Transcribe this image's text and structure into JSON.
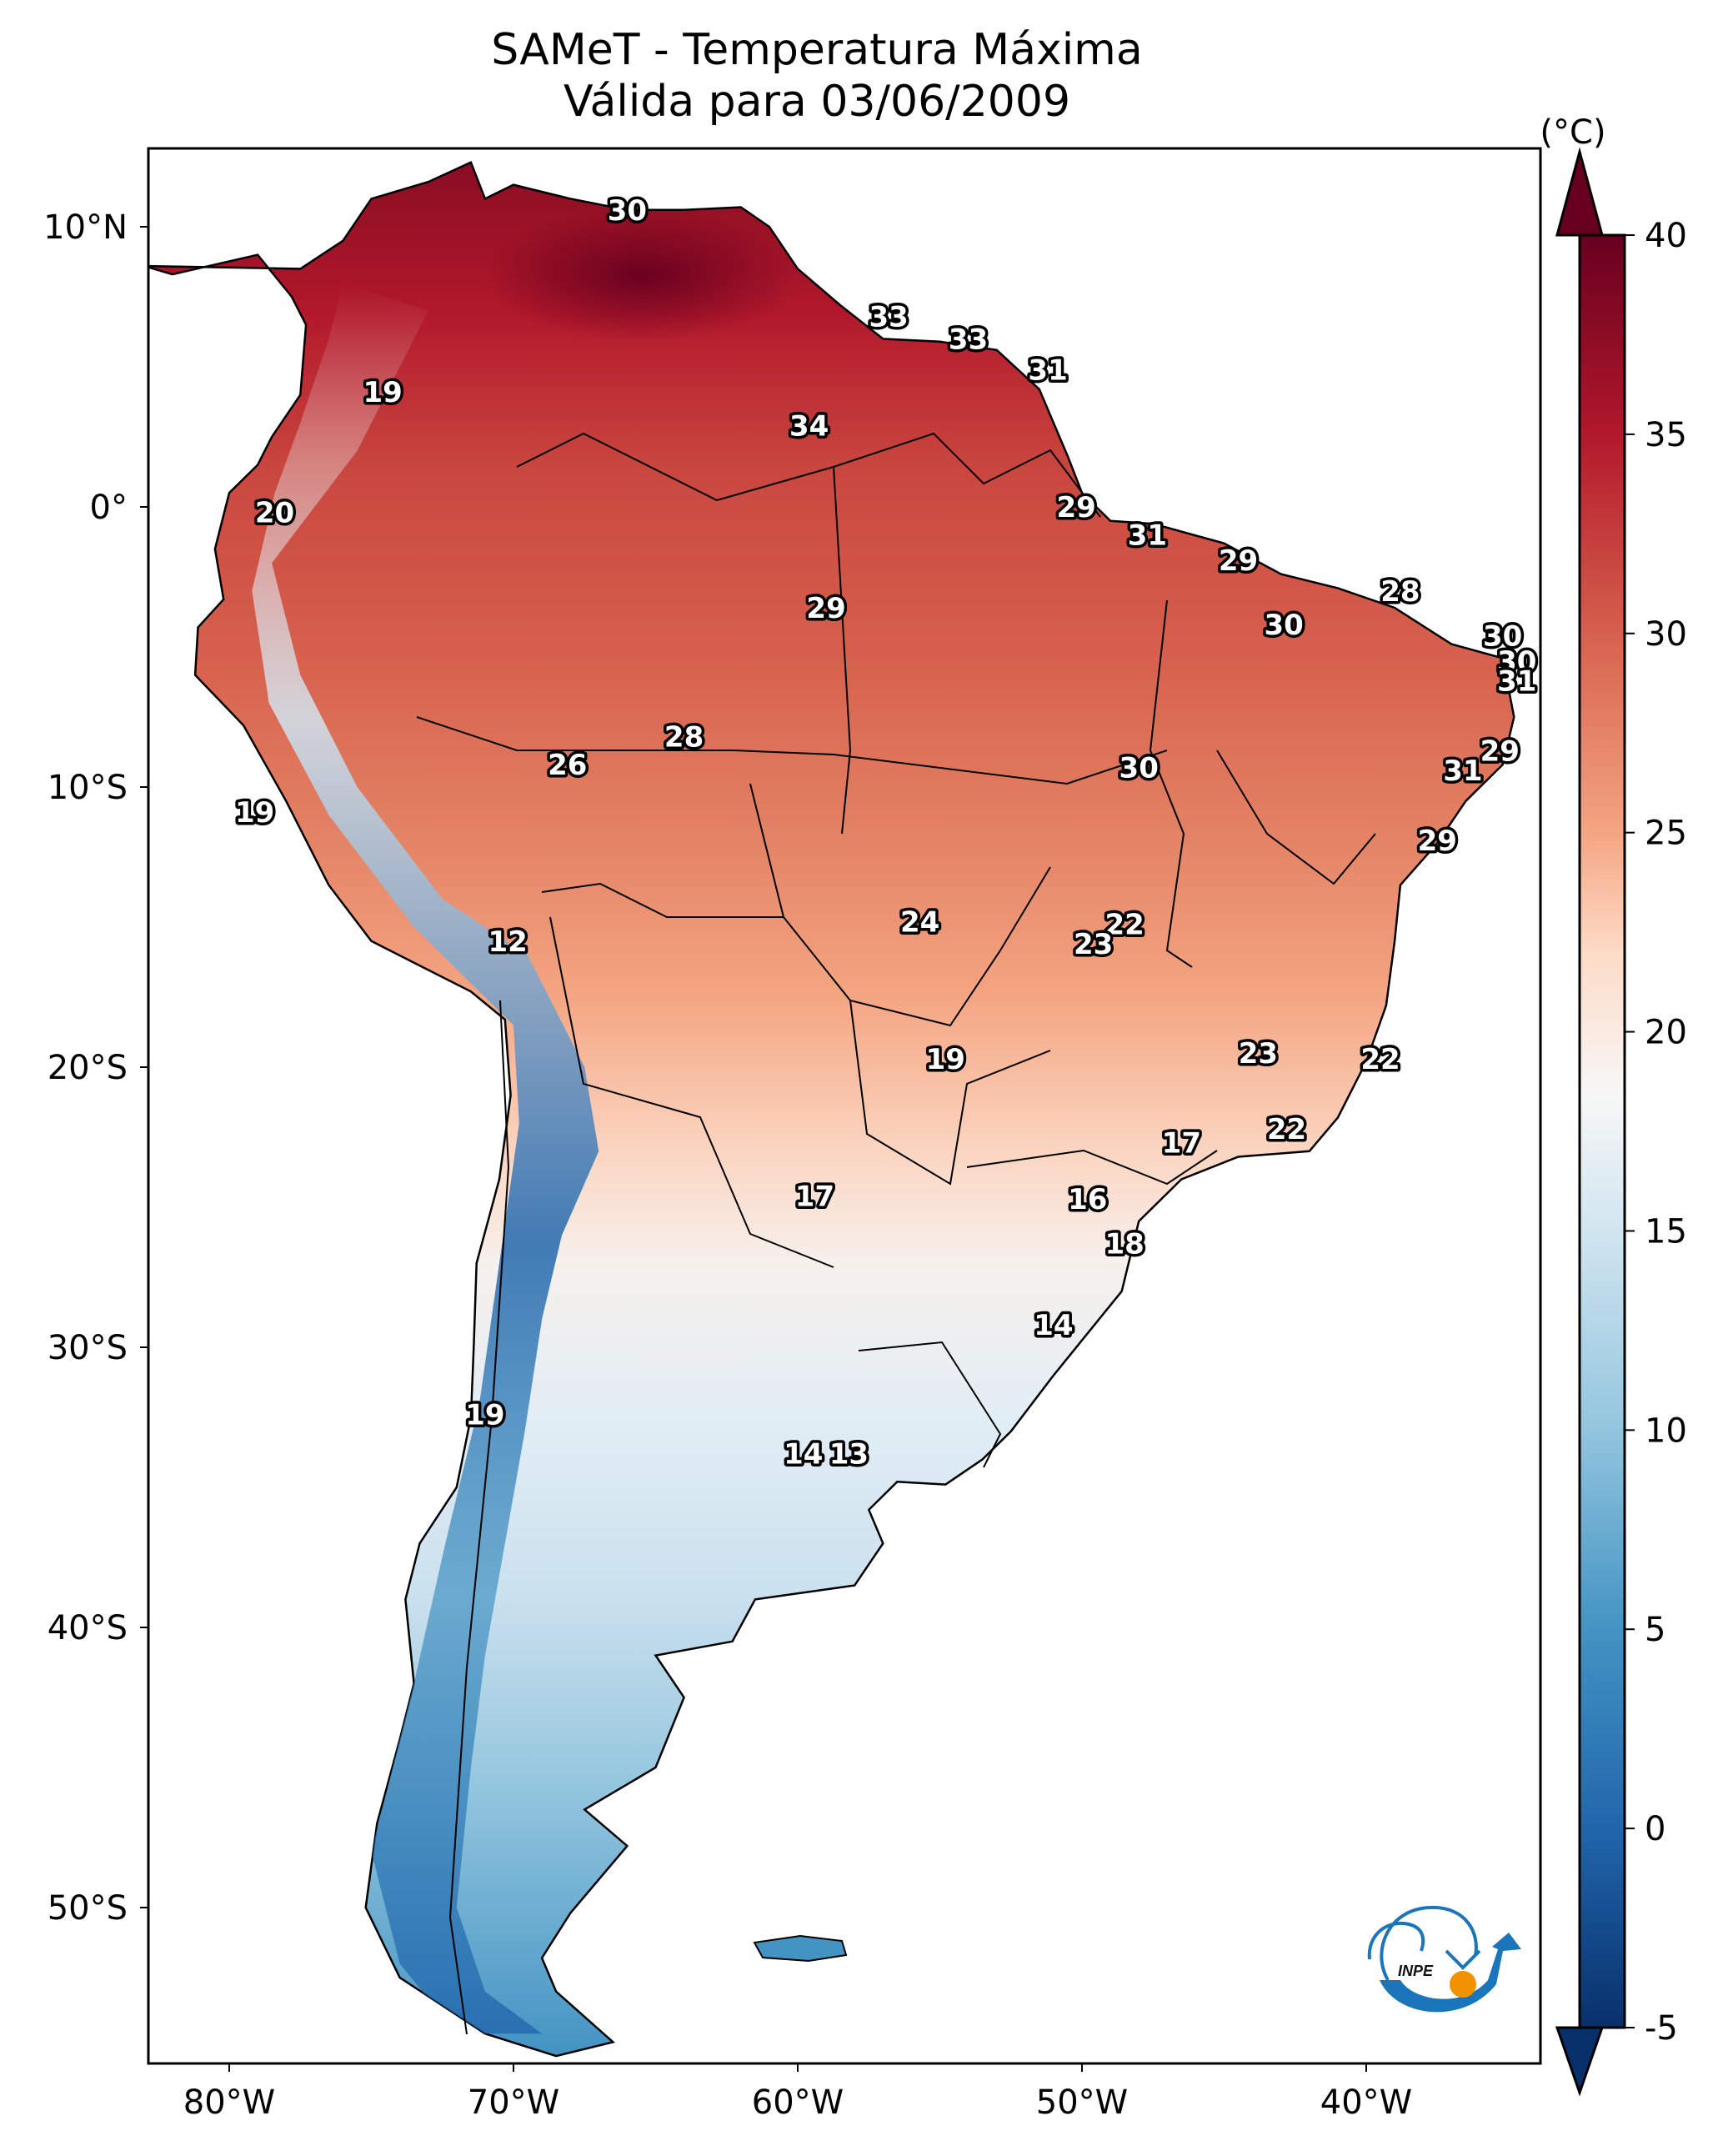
{
  "chart_data": {
    "type": "heatmap",
    "subtype": "map",
    "title": "SAMeT - Temperatura Máxima",
    "subtitle": "Válida para 03/06/2009",
    "region": "South America",
    "x_ticks": [
      {
        "value": -80,
        "label": "80°W"
      },
      {
        "value": -70,
        "label": "70°W"
      },
      {
        "value": -60,
        "label": "60°W"
      },
      {
        "value": -50,
        "label": "50°W"
      },
      {
        "value": -40,
        "label": "40°W"
      }
    ],
    "y_ticks": [
      {
        "value": 10,
        "label": "10°N"
      },
      {
        "value": 0,
        "label": "0°"
      },
      {
        "value": -10,
        "label": "10°S"
      },
      {
        "value": -20,
        "label": "20°S"
      },
      {
        "value": -30,
        "label": "30°S"
      },
      {
        "value": -40,
        "label": "40°S"
      },
      {
        "value": -50,
        "label": "50°S"
      }
    ],
    "xlim": [
      -83,
      -33
    ],
    "ylim": [
      -56,
      13
    ],
    "colorbar": {
      "unit_label": "(°C)",
      "range": [
        -5,
        40
      ],
      "extend": "both",
      "colormap": "RdBu_r",
      "ticks": [
        -5,
        0,
        5,
        10,
        15,
        20,
        25,
        30,
        35,
        40
      ],
      "tick_labels": [
        "-5",
        "0",
        "5",
        "10",
        "15",
        "20",
        "25",
        "30",
        "35",
        "40"
      ]
    },
    "labels": [
      {
        "value": 30,
        "lon": -66.0,
        "lat": 10.6
      },
      {
        "value": 33,
        "lon": -56.8,
        "lat": 6.8
      },
      {
        "value": 33,
        "lon": -54.0,
        "lat": 6.0
      },
      {
        "value": 31,
        "lon": -51.2,
        "lat": 4.9
      },
      {
        "value": 34,
        "lon": -59.6,
        "lat": 2.9
      },
      {
        "value": 19,
        "lon": -74.6,
        "lat": 4.1
      },
      {
        "value": 20,
        "lon": -78.4,
        "lat": -0.2
      },
      {
        "value": 29,
        "lon": -59.0,
        "lat": -3.6
      },
      {
        "value": 29,
        "lon": -50.2,
        "lat": 0.0
      },
      {
        "value": 31,
        "lon": -47.7,
        "lat": -1.0
      },
      {
        "value": 29,
        "lon": -44.5,
        "lat": -1.9
      },
      {
        "value": 28,
        "lon": -38.8,
        "lat": -3.0
      },
      {
        "value": 30,
        "lon": -42.9,
        "lat": -4.2
      },
      {
        "value": 30,
        "lon": -35.2,
        "lat": -4.6
      },
      {
        "value": 30,
        "lon": -34.7,
        "lat": -5.5
      },
      {
        "value": 31,
        "lon": -34.7,
        "lat": -6.2
      },
      {
        "value": 28,
        "lon": -64.0,
        "lat": -8.2
      },
      {
        "value": 26,
        "lon": -68.1,
        "lat": -9.2
      },
      {
        "value": 30,
        "lon": -48.0,
        "lat": -9.3
      },
      {
        "value": 29,
        "lon": -35.3,
        "lat": -8.7
      },
      {
        "value": 31,
        "lon": -36.6,
        "lat": -9.4
      },
      {
        "value": 19,
        "lon": -79.1,
        "lat": -10.9
      },
      {
        "value": 29,
        "lon": -37.5,
        "lat": -11.9
      },
      {
        "value": 24,
        "lon": -55.7,
        "lat": -14.8
      },
      {
        "value": 22,
        "lon": -48.5,
        "lat": -14.9
      },
      {
        "value": 23,
        "lon": -49.6,
        "lat": -15.6
      },
      {
        "value": 12,
        "lon": -70.2,
        "lat": -15.5
      },
      {
        "value": 19,
        "lon": -54.8,
        "lat": -19.7
      },
      {
        "value": 23,
        "lon": -43.8,
        "lat": -19.5
      },
      {
        "value": 22,
        "lon": -39.5,
        "lat": -19.7
      },
      {
        "value": 22,
        "lon": -42.8,
        "lat": -22.2
      },
      {
        "value": 17,
        "lon": -46.5,
        "lat": -22.7
      },
      {
        "value": 17,
        "lon": -59.4,
        "lat": -24.6
      },
      {
        "value": 16,
        "lon": -49.8,
        "lat": -24.7
      },
      {
        "value": 18,
        "lon": -48.5,
        "lat": -26.3
      },
      {
        "value": 14,
        "lon": -51.0,
        "lat": -29.2
      },
      {
        "value": 19,
        "lon": -71.0,
        "lat": -32.4
      },
      {
        "value": 14,
        "lon": -59.8,
        "lat": -33.8
      },
      {
        "value": 13,
        "lon": -58.2,
        "lat": -33.8
      }
    ]
  },
  "logo": {
    "text": "INPE"
  }
}
